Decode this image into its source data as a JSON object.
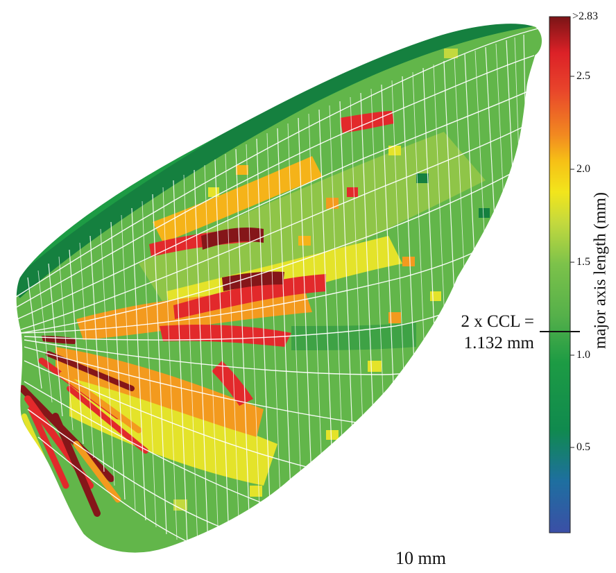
{
  "colorbar": {
    "title": "major axis length (mm)",
    "tick_labels": [
      ">2.83",
      "2.5",
      "2.0",
      "1.5",
      "1.0",
      "0.5"
    ],
    "stops": [
      "#3b4fa6",
      "#1e6fa0",
      "#108a4e",
      "#1d9b44",
      "#55b04a",
      "#7cc24a",
      "#c3d93e",
      "#f2e51c",
      "#f6c016",
      "#f28a20",
      "#e8432b",
      "#dc2127",
      "#7a1416"
    ]
  },
  "annotation": {
    "line1": "2 x CCL =",
    "line2": "1.132 mm"
  },
  "scale_bar": {
    "label": "10 mm"
  },
  "palette": {
    "cell_green": "#62b64a",
    "cell_dark_green": "#15803f",
    "cell_yellow": "#e4e32a",
    "cell_orange": "#f39a1e",
    "cell_red": "#e2292b",
    "cell_dark_red": "#851619",
    "vein": "#ffffff"
  }
}
